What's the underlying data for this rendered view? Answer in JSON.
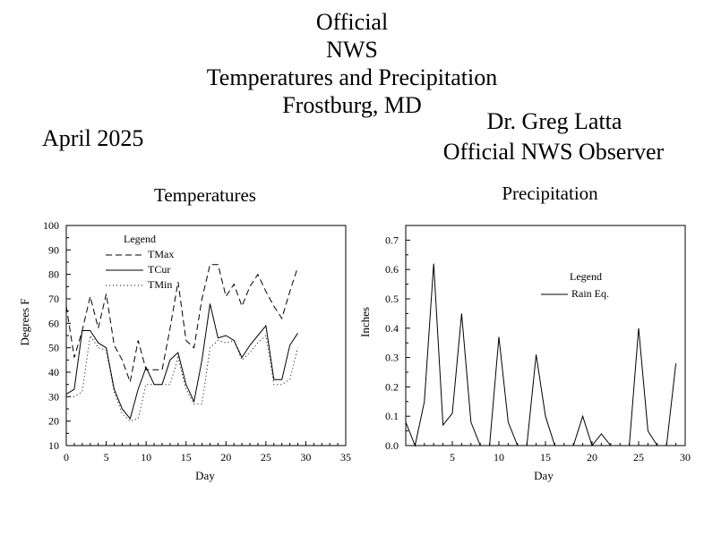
{
  "header": {
    "title_lines": [
      "Official",
      "NWS",
      "Temperatures and Precipitation",
      "Frostburg, MD"
    ],
    "month": "April 2025",
    "observer_name": "Dr. Greg Latta",
    "observer_role": "Official NWS Observer"
  },
  "chart_data": [
    {
      "type": "line",
      "title": "Temperatures",
      "xlabel": "Day",
      "ylabel": "Degrees F",
      "xlim": [
        0,
        35
      ],
      "ylim": [
        10,
        100
      ],
      "xticks": [
        0,
        5,
        10,
        15,
        20,
        25,
        30,
        35
      ],
      "yticks": [
        10,
        20,
        30,
        40,
        50,
        60,
        70,
        80,
        90,
        100
      ],
      "grid": false,
      "legend_title": "Legend",
      "legend_position": "top-left",
      "x": [
        0,
        1,
        2,
        3,
        4,
        5,
        6,
        7,
        8,
        9,
        10,
        11,
        12,
        13,
        14,
        15,
        16,
        17,
        18,
        19,
        20,
        21,
        22,
        23,
        24,
        25,
        26,
        27,
        28,
        29
      ],
      "series": [
        {
          "name": "TMax",
          "style": "dashed",
          "values": [
            67,
            46,
            57,
            71,
            58,
            72,
            51,
            45,
            36,
            53,
            41,
            41,
            41,
            58,
            77,
            53,
            50,
            70,
            84,
            84,
            71,
            76,
            67,
            75,
            80,
            73,
            67,
            62,
            73,
            83
          ]
        },
        {
          "name": "TCur",
          "style": "solid",
          "values": [
            31,
            33,
            57,
            57,
            52,
            50,
            33,
            25,
            21,
            33,
            42,
            35,
            35,
            45,
            48,
            35,
            28,
            45,
            68,
            54,
            55,
            53,
            46,
            51,
            55,
            59,
            37,
            37,
            51,
            56
          ]
        },
        {
          "name": "TMin",
          "style": "dotted",
          "values": [
            30,
            30,
            32,
            55,
            50,
            49,
            32,
            23,
            20,
            21,
            35,
            35,
            35,
            35,
            46,
            33,
            27,
            27,
            50,
            53,
            52,
            53,
            45,
            48,
            52,
            55,
            35,
            35,
            37,
            50
          ]
        }
      ]
    },
    {
      "type": "line",
      "title": "Precipitation",
      "xlabel": "Day",
      "ylabel": "Inches",
      "xlim": [
        0,
        30
      ],
      "ylim": [
        0,
        0.75
      ],
      "xticks": [
        5,
        10,
        15,
        20,
        25,
        30
      ],
      "yticks": [
        "0.0",
        "0.1",
        "0.2",
        "0.3",
        "0.4",
        "0.5",
        "0.6",
        "0.7"
      ],
      "grid": false,
      "legend_title": "Legend",
      "legend_position": "center-right",
      "x": [
        0,
        1,
        2,
        3,
        4,
        5,
        6,
        7,
        8,
        9,
        10,
        11,
        12,
        13,
        14,
        15,
        16,
        17,
        18,
        19,
        20,
        21,
        22,
        23,
        24,
        25,
        26,
        27,
        28,
        29
      ],
      "series": [
        {
          "name": "Rain Eq.",
          "style": "solid",
          "values": [
            0.08,
            0.0,
            0.15,
            0.62,
            0.07,
            0.11,
            0.45,
            0.08,
            0.0,
            0.0,
            0.37,
            0.08,
            0.0,
            0.0,
            0.31,
            0.1,
            0.0,
            0.0,
            0.0,
            0.1,
            0.0,
            0.04,
            0.0,
            0.0,
            0.0,
            0.4,
            0.05,
            0.0,
            0.0,
            0.28
          ]
        }
      ]
    }
  ]
}
